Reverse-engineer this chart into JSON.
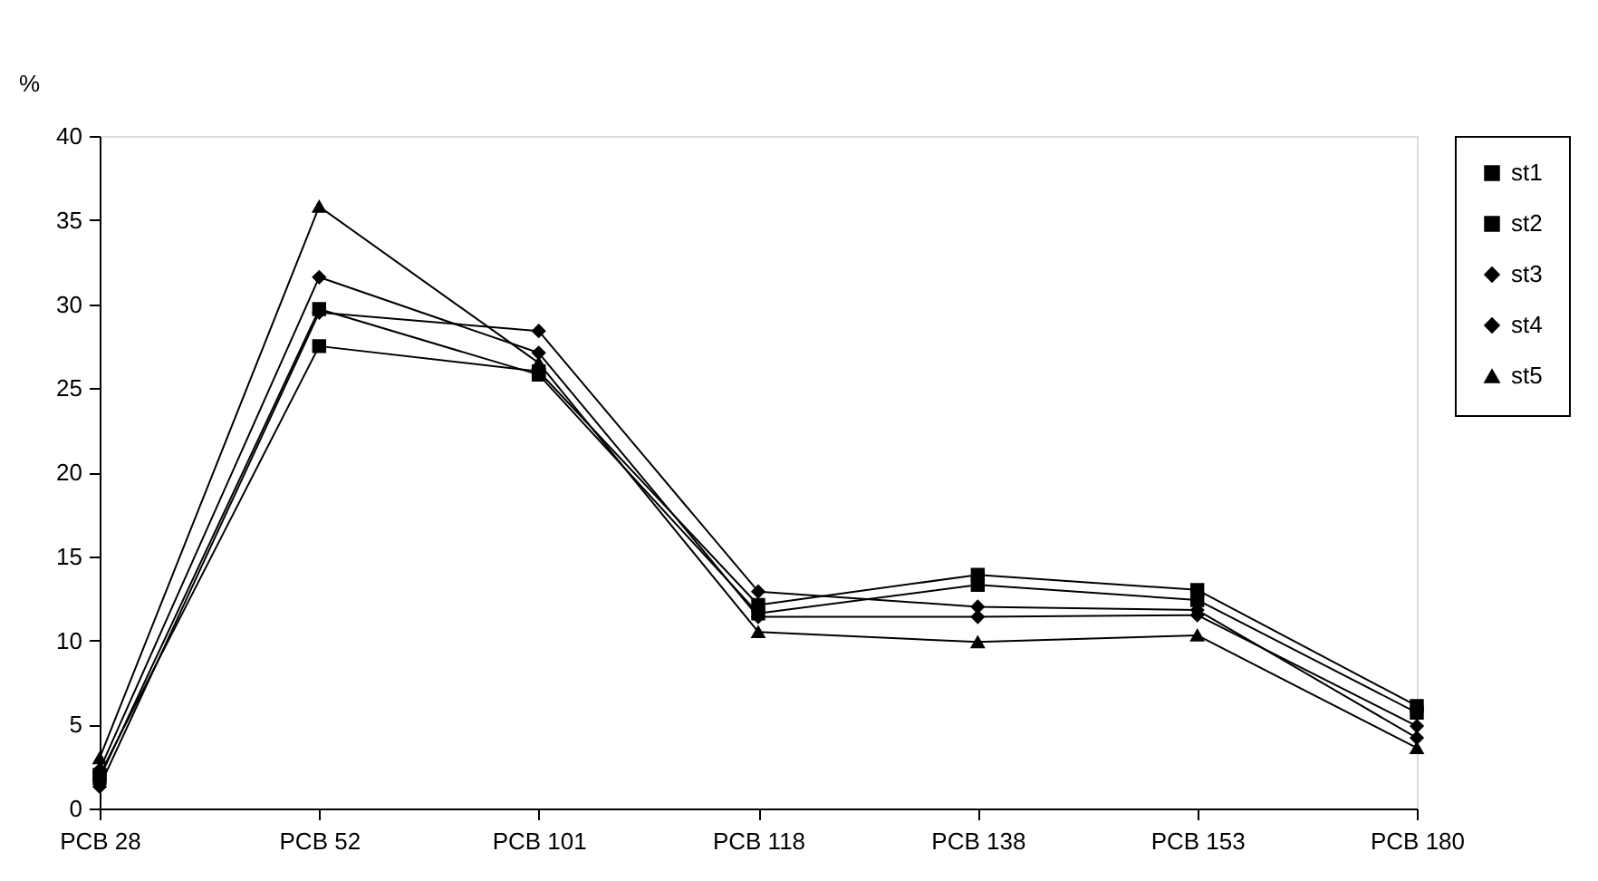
{
  "chart_data": {
    "type": "line",
    "ylabel": "%",
    "categories": [
      "PCB 28",
      "PCB 52",
      "PCB 101",
      "PCB 118",
      "PCB 138",
      "PCB 153",
      "PCB 180"
    ],
    "series": [
      {
        "name": "st1",
        "color": "#000000",
        "marker": "square",
        "values": [
          2.0,
          27.5,
          26.0,
          12.1,
          13.9,
          13.0,
          6.1
        ]
      },
      {
        "name": "st2",
        "color": "#000000",
        "marker": "square",
        "values": [
          1.8,
          29.7,
          25.8,
          11.6,
          13.3,
          12.4,
          5.7
        ]
      },
      {
        "name": "st3",
        "color": "#000000",
        "marker": "diamond",
        "values": [
          1.3,
          29.5,
          28.4,
          12.9,
          12.0,
          11.8,
          4.2
        ]
      },
      {
        "name": "st4",
        "color": "#000000",
        "marker": "diamond",
        "values": [
          2.3,
          31.6,
          27.1,
          11.4,
          11.4,
          11.5,
          4.9
        ]
      },
      {
        "name": "st5",
        "color": "#000000",
        "marker": "triangle",
        "values": [
          3.0,
          35.8,
          26.5,
          10.5,
          9.9,
          10.3,
          3.6
        ]
      }
    ],
    "ylim": [
      0,
      40
    ],
    "yticks": [
      0,
      5,
      10,
      15,
      20,
      25,
      30,
      35,
      40
    ],
    "grid": false,
    "legend": "right",
    "line_style": "solid"
  }
}
